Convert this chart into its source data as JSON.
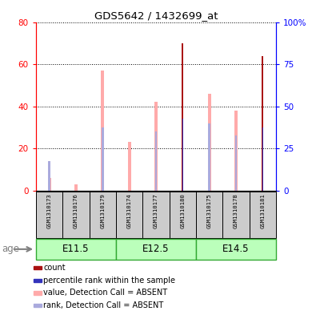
{
  "title": "GDS5642 / 1432699_at",
  "samples": [
    "GSM1310173",
    "GSM1310176",
    "GSM1310179",
    "GSM1310174",
    "GSM1310177",
    "GSM1310180",
    "GSM1310175",
    "GSM1310178",
    "GSM1310181"
  ],
  "age_groups": [
    {
      "label": "E11.5",
      "start": 0,
      "end": 3
    },
    {
      "label": "E12.5",
      "start": 3,
      "end": 6
    },
    {
      "label": "E14.5",
      "start": 6,
      "end": 9
    }
  ],
  "value_absent": [
    6,
    3,
    57,
    23,
    42,
    0,
    46,
    38,
    0
  ],
  "rank_absent": [
    14,
    0,
    30,
    0,
    28,
    0,
    32,
    26,
    0
  ],
  "count": [
    0,
    0,
    0,
    0,
    0,
    70,
    0,
    0,
    64
  ],
  "percentile_rank": [
    0,
    0,
    0,
    0,
    0,
    34,
    0,
    0,
    30
  ],
  "ylim_left": [
    0,
    80
  ],
  "ylim_right": [
    0,
    100
  ],
  "yticks_left": [
    0,
    20,
    40,
    60,
    80
  ],
  "yticks_right": [
    0,
    25,
    50,
    75,
    100
  ],
  "ytick_labels_right": [
    "0",
    "25",
    "50",
    "75",
    "100%"
  ],
  "color_count": "#aa1111",
  "color_percentile": "#3333bb",
  "color_value_absent": "#ffaaaa",
  "color_rank_absent": "#aaaadd",
  "color_age_bg_light": "#bbffbb",
  "color_age_bg_dark": "#66dd66",
  "color_age_border": "#33aa33",
  "color_sample_bg": "#cccccc",
  "legend_items": [
    {
      "color": "#aa1111",
      "label": "count"
    },
    {
      "color": "#3333bb",
      "label": "percentile rank within the sample"
    },
    {
      "color": "#ffaaaa",
      "label": "value, Detection Call = ABSENT"
    },
    {
      "color": "#aaaadd",
      "label": "rank, Detection Call = ABSENT"
    }
  ]
}
